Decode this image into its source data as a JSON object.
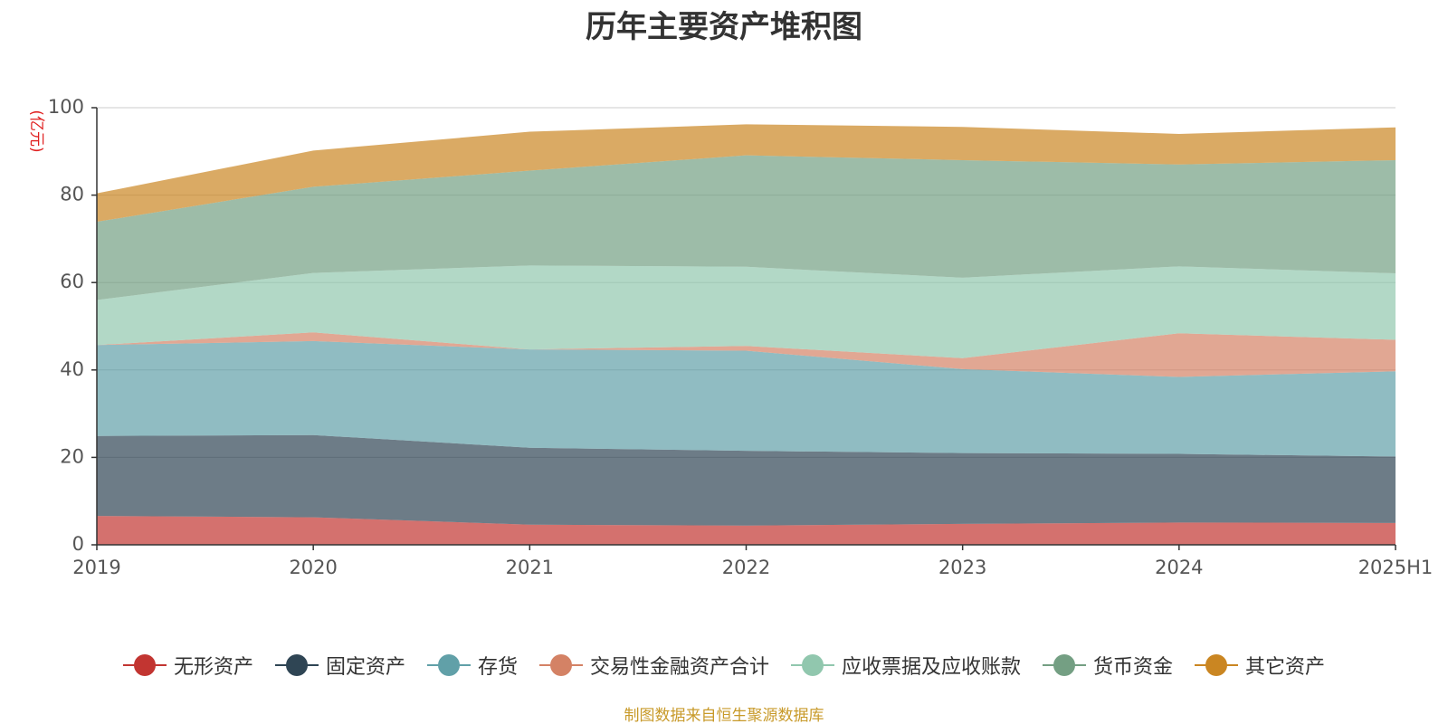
{
  "title": "历年主要资产堆积图",
  "source_note": "制图数据来自恒生聚源数据库",
  "chart_data": {
    "type": "area",
    "stacked": true,
    "title": "历年主要资产堆积图",
    "ylabel": "(亿元)",
    "xlabel": "",
    "categories": [
      "2019",
      "2020",
      "2021",
      "2022",
      "2023",
      "2024",
      "2025H1"
    ],
    "ylim": [
      0,
      100
    ],
    "yticks": [
      0,
      20,
      40,
      60,
      80,
      100
    ],
    "grid": true,
    "legend_position": "bottom",
    "series": [
      {
        "name": "无形资产",
        "color": "#c23531",
        "values": [
          6.6,
          6.3,
          4.6,
          4.4,
          4.8,
          5.1,
          5.0
        ]
      },
      {
        "name": "固定资产",
        "color": "#2f4554",
        "values": [
          18.3,
          18.8,
          17.6,
          17.1,
          16.2,
          15.7,
          15.2
        ]
      },
      {
        "name": "存货",
        "color": "#61a0a8",
        "values": [
          20.8,
          21.5,
          22.5,
          22.9,
          19.2,
          17.6,
          19.5
        ]
      },
      {
        "name": "交易性金融资产合计",
        "color": "#d48265",
        "values": [
          0.0,
          2.0,
          0.0,
          1.1,
          2.5,
          10.0,
          7.2
        ]
      },
      {
        "name": "应收票据及应收账款",
        "color": "#91c7ae",
        "values": [
          10.3,
          13.6,
          19.2,
          18.1,
          18.4,
          15.3,
          15.2
        ]
      },
      {
        "name": "货币资金",
        "color": "#749f83",
        "values": [
          17.9,
          19.7,
          21.7,
          25.5,
          26.9,
          23.3,
          25.9
        ]
      },
      {
        "name": "其它资产",
        "color": "#ca8622",
        "values": [
          6.5,
          8.3,
          8.9,
          7.1,
          7.6,
          7.0,
          7.5
        ]
      }
    ]
  }
}
